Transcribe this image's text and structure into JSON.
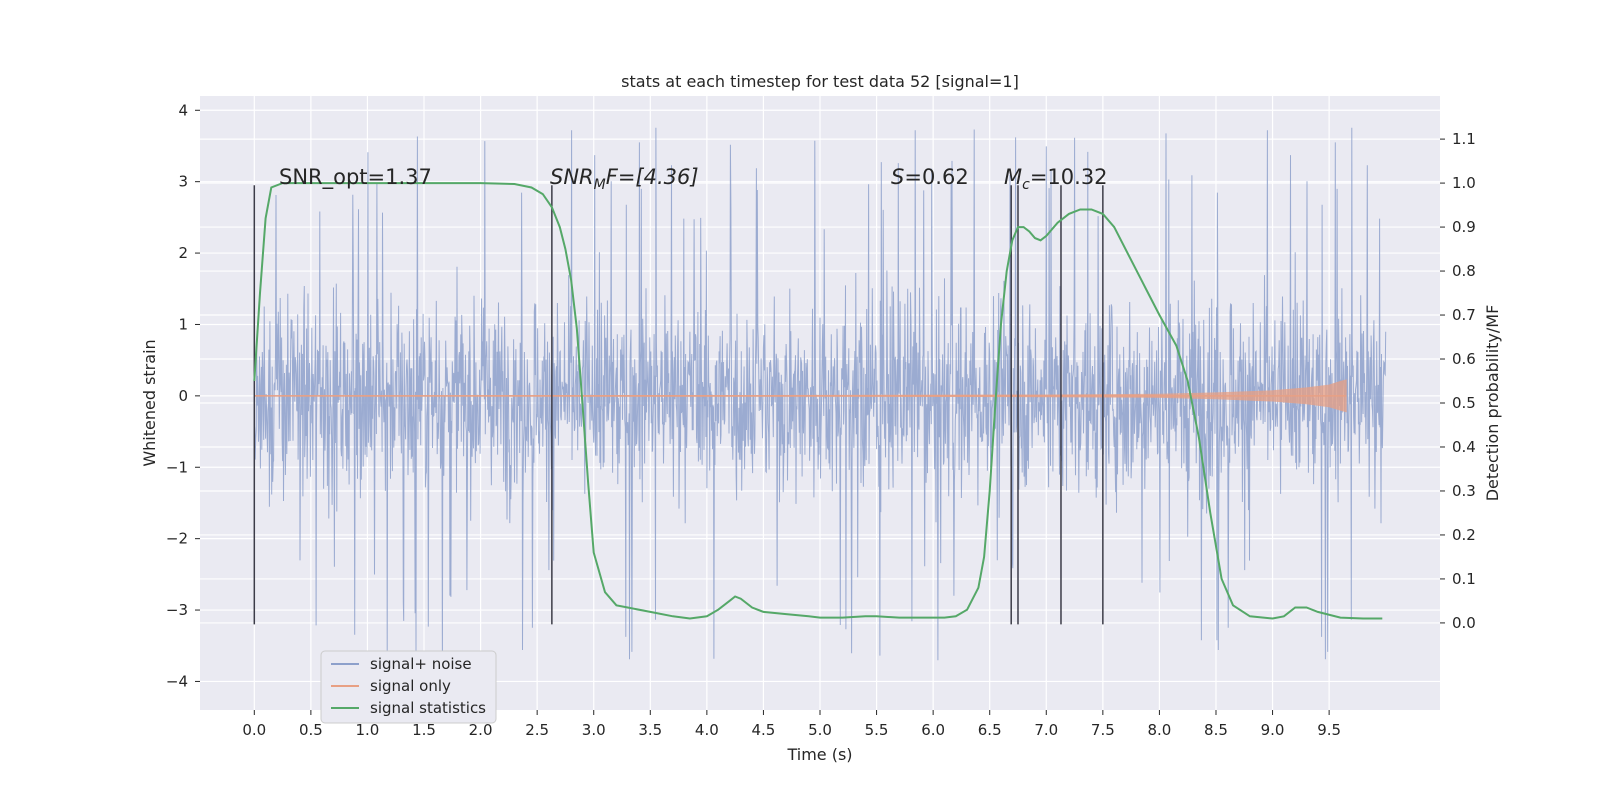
{
  "chart_data": {
    "type": "line",
    "title": "stats at each timestep for test data 52 [signal=1]",
    "xlabel": "Time (s)",
    "ylabel": "Whitened strain",
    "y2label": "Detection probability/MF",
    "xlim": [
      -0.48,
      10.48
    ],
    "ylim": [
      -4.4,
      4.2
    ],
    "y2lim": [
      -0.198,
      1.198
    ],
    "x_ticks": [
      "0.0",
      "0.5",
      "1.0",
      "1.5",
      "2.0",
      "2.5",
      "3.0",
      "3.5",
      "4.0",
      "4.5",
      "5.0",
      "5.5",
      "6.0",
      "6.5",
      "7.0",
      "7.5",
      "8.0",
      "8.5",
      "9.0",
      "9.5"
    ],
    "y_ticks": [
      "−4",
      "−3",
      "−2",
      "−1",
      "0",
      "1",
      "2",
      "3",
      "4"
    ],
    "y2_ticks": [
      "0.0",
      "0.1",
      "0.2",
      "0.3",
      "0.4",
      "0.5",
      "0.6",
      "0.7",
      "0.8",
      "0.9",
      "1.0",
      "1.1"
    ],
    "grid": true,
    "legend_position": "lower-left",
    "annotations": {
      "snr_opt": "SNR_opt=1.37",
      "snr_mf_main": "SNR",
      "snr_mf_sub": "M",
      "snr_mf_rest": "F=[4.36]",
      "s_main": "S",
      "s_rest": "=0.62",
      "mc_main": "M",
      "mc_sub": "c",
      "mc_rest": "=10.32"
    },
    "vertical_markers": [
      0.0,
      2.63,
      6.69,
      6.75,
      7.13,
      7.5
    ],
    "series": [
      {
        "name": "signal+ noise",
        "color": "#8da0cb",
        "description_x_range": [
          0.0,
          10.0
        ],
        "typical_range": [
          -2.0,
          2.0
        ],
        "peak_range": [
          -3.9,
          3.8
        ]
      },
      {
        "name": "signal only",
        "color": "#e8a084",
        "x": [
          0.0,
          5.0,
          7.0,
          8.0,
          8.5,
          9.0,
          9.3,
          9.5,
          9.6,
          9.65
        ],
        "amplitude": [
          0.0,
          0.005,
          0.01,
          0.02,
          0.04,
          0.07,
          0.11,
          0.15,
          0.2,
          0.22
        ]
      },
      {
        "name": "signal statistics",
        "color": "#55a868",
        "axis": "right",
        "x": [
          0.0,
          0.05,
          0.1,
          0.15,
          0.25,
          0.4,
          0.6,
          1.0,
          1.5,
          2.0,
          2.3,
          2.45,
          2.55,
          2.63,
          2.7,
          2.75,
          2.8,
          2.85,
          2.9,
          2.95,
          3.0,
          3.1,
          3.2,
          3.3,
          3.5,
          3.7,
          3.85,
          4.0,
          4.1,
          4.2,
          4.25,
          4.3,
          4.4,
          4.5,
          4.7,
          4.9,
          5.0,
          5.2,
          5.4,
          5.5,
          5.7,
          5.9,
          6.1,
          6.2,
          6.3,
          6.4,
          6.45,
          6.5,
          6.55,
          6.6,
          6.65,
          6.7,
          6.75,
          6.8,
          6.85,
          6.9,
          6.95,
          7.0,
          7.1,
          7.2,
          7.3,
          7.4,
          7.5,
          7.6,
          7.8,
          8.0,
          8.15,
          8.25,
          8.35,
          8.45,
          8.55,
          8.65,
          8.8,
          9.0,
          9.1,
          9.2,
          9.3,
          9.4,
          9.6,
          9.8,
          9.97
        ],
        "y": [
          0.55,
          0.75,
          0.92,
          0.99,
          1.0,
          1.0,
          1.0,
          1.0,
          1.0,
          1.0,
          0.998,
          0.99,
          0.975,
          0.945,
          0.9,
          0.85,
          0.78,
          0.67,
          0.5,
          0.32,
          0.16,
          0.07,
          0.04,
          0.035,
          0.025,
          0.015,
          0.01,
          0.015,
          0.03,
          0.05,
          0.06,
          0.055,
          0.035,
          0.025,
          0.02,
          0.015,
          0.012,
          0.012,
          0.015,
          0.015,
          0.012,
          0.012,
          0.012,
          0.015,
          0.03,
          0.08,
          0.15,
          0.3,
          0.5,
          0.68,
          0.8,
          0.87,
          0.9,
          0.9,
          0.89,
          0.875,
          0.87,
          0.88,
          0.91,
          0.93,
          0.94,
          0.94,
          0.93,
          0.9,
          0.8,
          0.7,
          0.63,
          0.55,
          0.42,
          0.25,
          0.1,
          0.04,
          0.015,
          0.01,
          0.015,
          0.035,
          0.035,
          0.025,
          0.012,
          0.01,
          0.01
        ]
      }
    ]
  }
}
